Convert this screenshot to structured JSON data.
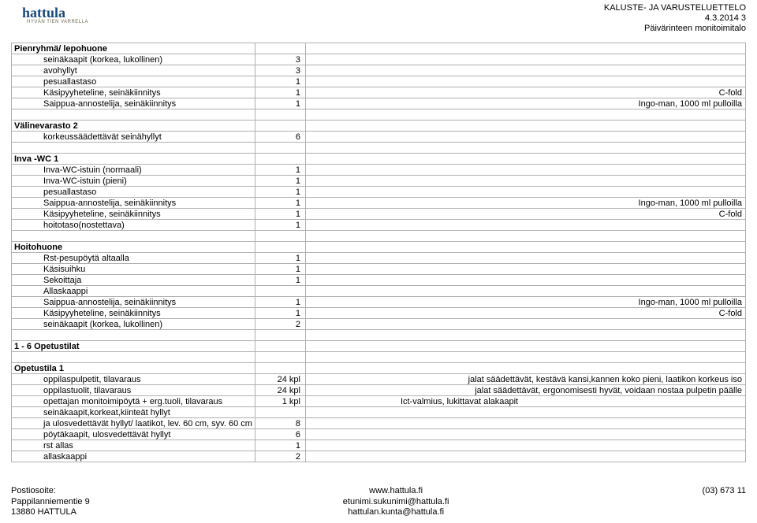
{
  "logo": {
    "text": "hattula",
    "sub": "HYVÄN TIEN VARRELLA"
  },
  "header": {
    "l1": "KALUSTE- JA VARUSTELUETTELO",
    "l2": "4.3.2014 3",
    "l3": "Päivärinteen monitoimitalo"
  },
  "labels": {
    "ingo": "Ingo-man, 1000 ml pulloilla",
    "cfold": "C-fold"
  },
  "sections": [
    {
      "title": "Pienryhmä/ lepohuone",
      "rows": [
        {
          "c1": "seinäkaapit (korkea, lukollinen)",
          "c2": "3",
          "c3": ""
        },
        {
          "c1": "avohyllyt",
          "c2": "3",
          "c3": ""
        },
        {
          "c1": "pesuallastaso",
          "c2": "1",
          "c3": ""
        },
        {
          "c1": "Käsipyyheteline, seinäkiinnitys",
          "c2": "1",
          "c3": "C-fold"
        },
        {
          "c1": "Saippua-annostelija, seinäkiinnitys",
          "c2": "1",
          "c3": "Ingo-man, 1000 ml pulloilla"
        }
      ],
      "blank": true
    },
    {
      "title": "Välinevarasto 2",
      "rows": [
        {
          "c1": "korkeussäädettävät seinähyllyt",
          "c2": "6",
          "c3": ""
        }
      ],
      "blank": true
    },
    {
      "title": "Inva -WC 1",
      "rows": [
        {
          "c1": "Inva-WC-istuin (normaali)",
          "c2": "1",
          "c3": ""
        },
        {
          "c1": "Inva-WC-istuin (pieni)",
          "c2": "1",
          "c3": ""
        },
        {
          "c1": "pesuallastaso",
          "c2": "1",
          "c3": ""
        },
        {
          "c1": "Saippua-annostelija, seinäkiinnitys",
          "c2": "1",
          "c3": "Ingo-man, 1000 ml pulloilla"
        },
        {
          "c1": "Käsipyyheteline, seinäkiinnitys",
          "c2": "1",
          "c3": "C-fold"
        },
        {
          "c1": "hoitotaso(nostettava)",
          "c2": "1",
          "c3": ""
        }
      ],
      "blank": true
    },
    {
      "title": "Hoitohuone",
      "rows": [
        {
          "c1": "Rst-pesupöytä altaalla",
          "c2": "1",
          "c3": ""
        },
        {
          "c1": "Käsisuihku",
          "c2": "1",
          "c3": ""
        },
        {
          "c1": "Sekoittaja",
          "c2": "1",
          "c3": ""
        },
        {
          "c1": "Allaskaappi",
          "c2": "",
          "c3": ""
        },
        {
          "c1": "Saippua-annostelija, seinäkiinnitys",
          "c2": "1",
          "c3": "Ingo-man, 1000 ml pulloilla"
        },
        {
          "c1": "Käsipyyheteline, seinäkiinnitys",
          "c2": "1",
          "c3": "C-fold"
        },
        {
          "c1": "seinäkaapit (korkea, lukollinen)",
          "c2": "2",
          "c3": ""
        }
      ],
      "blank": true
    },
    {
      "title": "1 - 6 Opetustilat",
      "big": true,
      "rows": [],
      "blank": true
    },
    {
      "title": "Opetustila 1",
      "rows": [
        {
          "c1": "oppilaspulpetit, tilavaraus",
          "c2": "24 kpl",
          "c3": "jalat säädettävät, kestävä kansi,kannen koko pieni, laatikon korkeus iso"
        },
        {
          "c1": "oppilastuolit, tilavaraus",
          "c2": "24 kpl",
          "c3": "jalat säädettävät, ergonomisesti hyvät, voidaan nostaa pulpetin päälle"
        },
        {
          "c1": "opettajan monitoimipöytä + erg.tuoli, tilavaraus",
          "c2": "1 kpl",
          "c3": "Ict-valmius, lukittavat alakaapit",
          "c3left": true
        },
        {
          "c1": "seinäkaapit,korkeat,kiinteät hyllyt",
          "c2": "",
          "c3": ""
        },
        {
          "c1": "ja ulosvedettävät hyllyt/ laatikot, lev. 60 cm, syv. 60 cm",
          "c2": "8",
          "c3": ""
        },
        {
          "c1": "pöytäkaapit, ulosvedettävät hyllyt",
          "c2": "6",
          "c3": ""
        },
        {
          "c1": "rst allas",
          "c2": "1",
          "c3": ""
        },
        {
          "c1": "allaskaappi",
          "c2": "2",
          "c3": ""
        }
      ],
      "blank": false
    }
  ],
  "footer": {
    "left": [
      "Postiosoite:",
      "Pappilanniementie 9",
      "13880 HATTULA"
    ],
    "mid": [
      "www.hattula.fi",
      "etunimi.sukunimi@hattula.fi",
      "hattulan.kunta@hattula.fi"
    ],
    "right": [
      "(03) 673 11"
    ]
  },
  "style": {
    "border_color": "#b0b0b0",
    "logo_color": "#1a4a7a"
  }
}
